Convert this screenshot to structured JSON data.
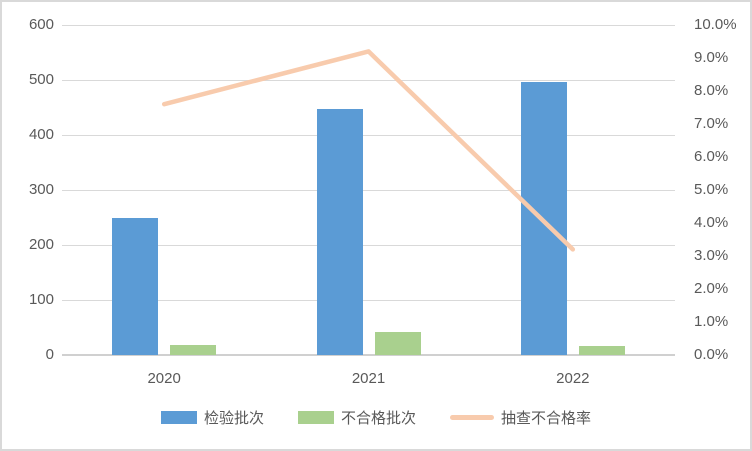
{
  "chart_data": {
    "type": "combo",
    "categories": [
      "2020",
      "2021",
      "2022"
    ],
    "series": [
      {
        "name": "检验批次",
        "type": "bar",
        "axis": "left",
        "color": "#5B9BD5",
        "values": [
          250,
          447,
          497
        ]
      },
      {
        "name": "不合格批次",
        "type": "bar",
        "axis": "left",
        "color": "#A9D08E",
        "values": [
          19,
          41,
          16
        ]
      },
      {
        "name": "抽查不合格率",
        "type": "line",
        "axis": "right",
        "color": "#F8CBAD",
        "values": [
          7.6,
          9.2,
          3.2
        ]
      }
    ],
    "left_axis": {
      "min": 0,
      "max": 600,
      "step": 100,
      "tick_labels_top_down": [
        "600",
        "500",
        "400",
        "300",
        "200",
        "100",
        "0"
      ]
    },
    "right_axis": {
      "min": 0,
      "max": 10,
      "step": 1,
      "tick_labels_top_down": [
        "10.0%",
        "9.0%",
        "8.0%",
        "7.0%",
        "6.0%",
        "5.0%",
        "4.0%",
        "3.0%",
        "2.0%",
        "1.0%",
        "0.0%"
      ]
    },
    "grid": true,
    "legend_position": "bottom",
    "colors": {
      "grid": "#D9D9D9",
      "axis_text": "#595959",
      "background": "#FFFFFF",
      "frame_border": "#D9D9D9"
    }
  }
}
